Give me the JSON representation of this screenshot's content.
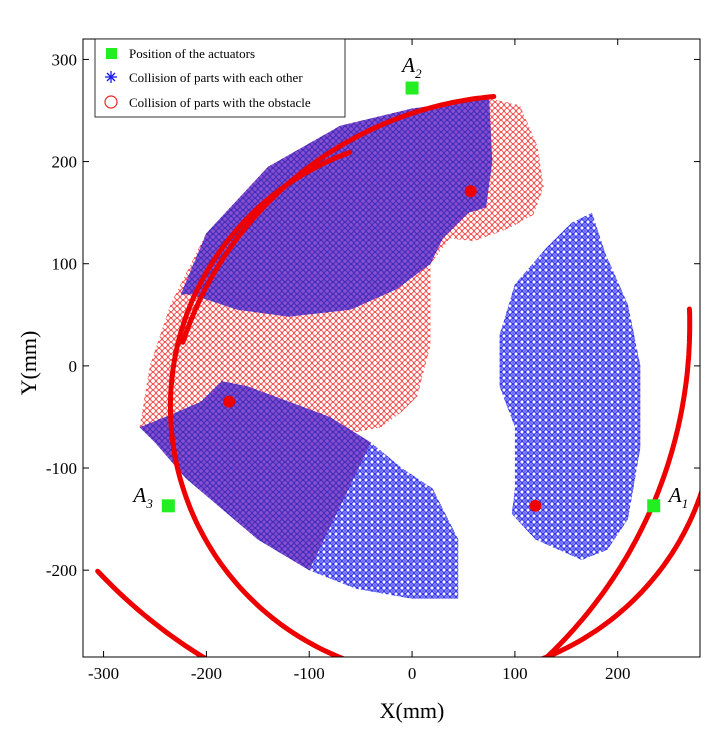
{
  "chart_data": {
    "type": "scatter",
    "xlabel": "X(mm)",
    "ylabel": "Y(mm)",
    "xlim": [
      -320,
      280
    ],
    "ylim": [
      -285,
      320
    ],
    "xticks": [
      -300,
      -200,
      -100,
      0,
      100,
      200
    ],
    "yticks": [
      -200,
      -100,
      0,
      100,
      200,
      300
    ],
    "grid": false,
    "legend_position": "top-left",
    "colors": {
      "actuator": "#22ee22",
      "collision_parts": "#1a1aee",
      "collision_obstacle": "#ee2222",
      "boundary": "#ee0000"
    },
    "legend": [
      {
        "label": "Position of the actuators",
        "marker": "square",
        "color": "#22ee22"
      },
      {
        "label": "Collision of parts with each other",
        "marker": "asterisk",
        "color": "#1a1aee"
      },
      {
        "label": "Collision of parts with the obstacle",
        "marker": "circle",
        "color": "#ee2222"
      }
    ],
    "actuators": [
      {
        "label": "A",
        "sub": "1",
        "x": 235,
        "y": -137
      },
      {
        "label": "A",
        "sub": "2",
        "x": 0,
        "y": 272
      },
      {
        "label": "A",
        "sub": "3",
        "x": -237,
        "y": -137
      }
    ],
    "red_points": [
      {
        "x": 57,
        "y": 171
      },
      {
        "x": -178,
        "y": -35
      },
      {
        "x": 120,
        "y": -137
      }
    ],
    "boundary_arcs": [
      {
        "cx": 30,
        "cy": -40,
        "r": 265,
        "from_deg": 110,
        "to_deg": 268
      },
      {
        "cx": 30,
        "cy": -40,
        "r": 265,
        "from_deg": 268,
        "to_deg": 334
      },
      {
        "cx": 30,
        "cy": -40,
        "r": 265,
        "from_deg": 334,
        "to_deg": 370
      },
      {
        "cx": 110,
        "cy": -85,
        "r": 350,
        "from_deg": 95,
        "to_deg": 152
      },
      {
        "cx": 110,
        "cy": -85,
        "r": 350,
        "from_deg": 152,
        "to_deg": 162
      },
      {
        "cx": -180,
        "cy": 40,
        "r": 450,
        "from_deg": -60,
        "to_deg": 2
      },
      {
        "cx": 60,
        "cy": 140,
        "r": 500,
        "from_deg": 223,
        "to_deg": 300
      }
    ],
    "obstacle_region": [
      [
        -265,
        -60
      ],
      [
        -255,
        0
      ],
      [
        -235,
        60
      ],
      [
        -200,
        130
      ],
      [
        -140,
        195
      ],
      [
        -70,
        235
      ],
      [
        0,
        252
      ],
      [
        75,
        262
      ],
      [
        105,
        255
      ],
      [
        122,
        215
      ],
      [
        128,
        175
      ],
      [
        118,
        148
      ],
      [
        95,
        135
      ],
      [
        60,
        122
      ],
      [
        37,
        125
      ],
      [
        18,
        100
      ],
      [
        18,
        20
      ],
      [
        5,
        -30
      ],
      [
        -10,
        -45
      ],
      [
        -30,
        -60
      ],
      [
        -80,
        -70
      ],
      [
        -140,
        -60
      ],
      [
        -200,
        -70
      ],
      [
        -250,
        -75
      ]
    ],
    "parts_region_top": [
      [
        -225,
        70
      ],
      [
        -200,
        130
      ],
      [
        -140,
        195
      ],
      [
        -70,
        235
      ],
      [
        0,
        252
      ],
      [
        75,
        262
      ],
      [
        78,
        200
      ],
      [
        72,
        155
      ],
      [
        55,
        150
      ],
      [
        30,
        125
      ],
      [
        18,
        100
      ],
      [
        -15,
        75
      ],
      [
        -60,
        55
      ],
      [
        -120,
        48
      ],
      [
        -170,
        55
      ],
      [
        -215,
        70
      ]
    ],
    "parts_region_left": [
      [
        -265,
        -60
      ],
      [
        -250,
        -75
      ],
      [
        -220,
        -110
      ],
      [
        -185,
        -140
      ],
      [
        -150,
        -170
      ],
      [
        -100,
        -200
      ],
      [
        -55,
        -218
      ],
      [
        0,
        -228
      ],
      [
        45,
        -228
      ],
      [
        45,
        -170
      ],
      [
        20,
        -120
      ],
      [
        -10,
        -100
      ],
      [
        -40,
        -75
      ],
      [
        -80,
        -50
      ],
      [
        -120,
        -35
      ],
      [
        -160,
        -20
      ],
      [
        -185,
        -15
      ],
      [
        -205,
        -35
      ],
      [
        -240,
        -50
      ]
    ],
    "parts_region_right": [
      [
        175,
        150
      ],
      [
        188,
        110
      ],
      [
        210,
        60
      ],
      [
        222,
        0
      ],
      [
        222,
        -80
      ],
      [
        210,
        -150
      ],
      [
        190,
        -180
      ],
      [
        165,
        -190
      ],
      [
        120,
        -170
      ],
      [
        97,
        -145
      ],
      [
        100,
        -120
      ],
      [
        100,
        -60
      ],
      [
        85,
        -20
      ],
      [
        85,
        30
      ],
      [
        100,
        80
      ],
      [
        130,
        115
      ],
      [
        155,
        140
      ]
    ]
  }
}
